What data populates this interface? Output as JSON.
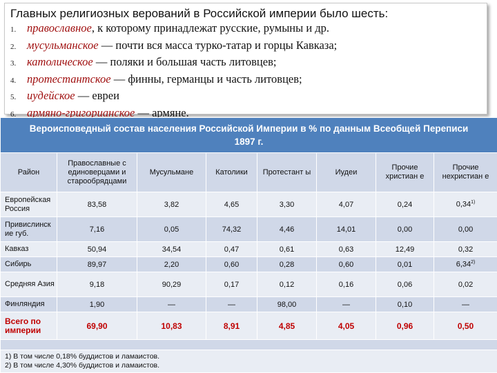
{
  "intro": {
    "title": "Главных религиозных верований в Российской империи было шесть:",
    "items": [
      {
        "num": "1.",
        "religion": "православное",
        "rest": ", к которому принадлежат русские, румыны и др."
      },
      {
        "num": "2.",
        "religion": "мусульманское",
        "rest": " — почти вся масса турко-татар и горцы Кавказа;"
      },
      {
        "num": "3.",
        "religion": "католическое",
        "rest": " — поляки и большая часть литовцев;"
      },
      {
        "num": "4.",
        "religion": "протестантское",
        "rest": " — финны, германцы и часть литовцев;"
      },
      {
        "num": "5.",
        "religion": "иудейское",
        "rest": " — евреи"
      },
      {
        "num": "6.",
        "religion": "армяно-григорианское",
        "rest": " — армяне."
      }
    ]
  },
  "table": {
    "caption": "Вероисповедный состав населения Российской Империи в % по данным Всеобщей Переписи 1897 г.",
    "headers": [
      "Район",
      "Православные с единоверцами и старообрядцами",
      "Мусульмане",
      "Католики",
      "Протестант ы",
      "Иудеи",
      "Прочие христиан е",
      "Прочие нехристиан е"
    ],
    "rows": [
      {
        "region": "Европейская Россия",
        "values": [
          "83,58",
          "3,82",
          "4,65",
          "3,30",
          "4,07",
          "0,24",
          "0,34"
        ],
        "sup": "1)"
      },
      {
        "region": "Привислинск ие губ.",
        "values": [
          "7,16",
          "0,05",
          "74,32",
          "4,46",
          "14,01",
          "0,00",
          "0,00"
        ]
      },
      {
        "region": "Кавказ",
        "values": [
          "50,94",
          "34,54",
          "0,47",
          "0,61",
          "0,63",
          "12,49",
          "0,32"
        ]
      },
      {
        "region": "Сибирь",
        "values": [
          "89,97",
          "2,20",
          "0,60",
          "0,28",
          "0,60",
          "0,01",
          "6,34"
        ],
        "sup": "2)"
      },
      {
        "region": "Средняя Азия",
        "values": [
          "9,18",
          "90,29",
          "0,17",
          "0,12",
          "0,16",
          "0,06",
          "0,02"
        ]
      },
      {
        "region": "Финляндия",
        "values": [
          "1,90",
          "—",
          "—",
          "98,00",
          "—",
          "0,10",
          "—"
        ]
      }
    ],
    "total": {
      "region": "Всего по империи",
      "values": [
        "69,90",
        "10,83",
        "8,91",
        "4,85",
        "4,05",
        "0,96",
        "0,50"
      ]
    },
    "notes": [
      "1) В том числе 0,18% буддистов и ламаистов.",
      "2) В том числе 4,30% буддистов и ламаистов."
    ]
  }
}
